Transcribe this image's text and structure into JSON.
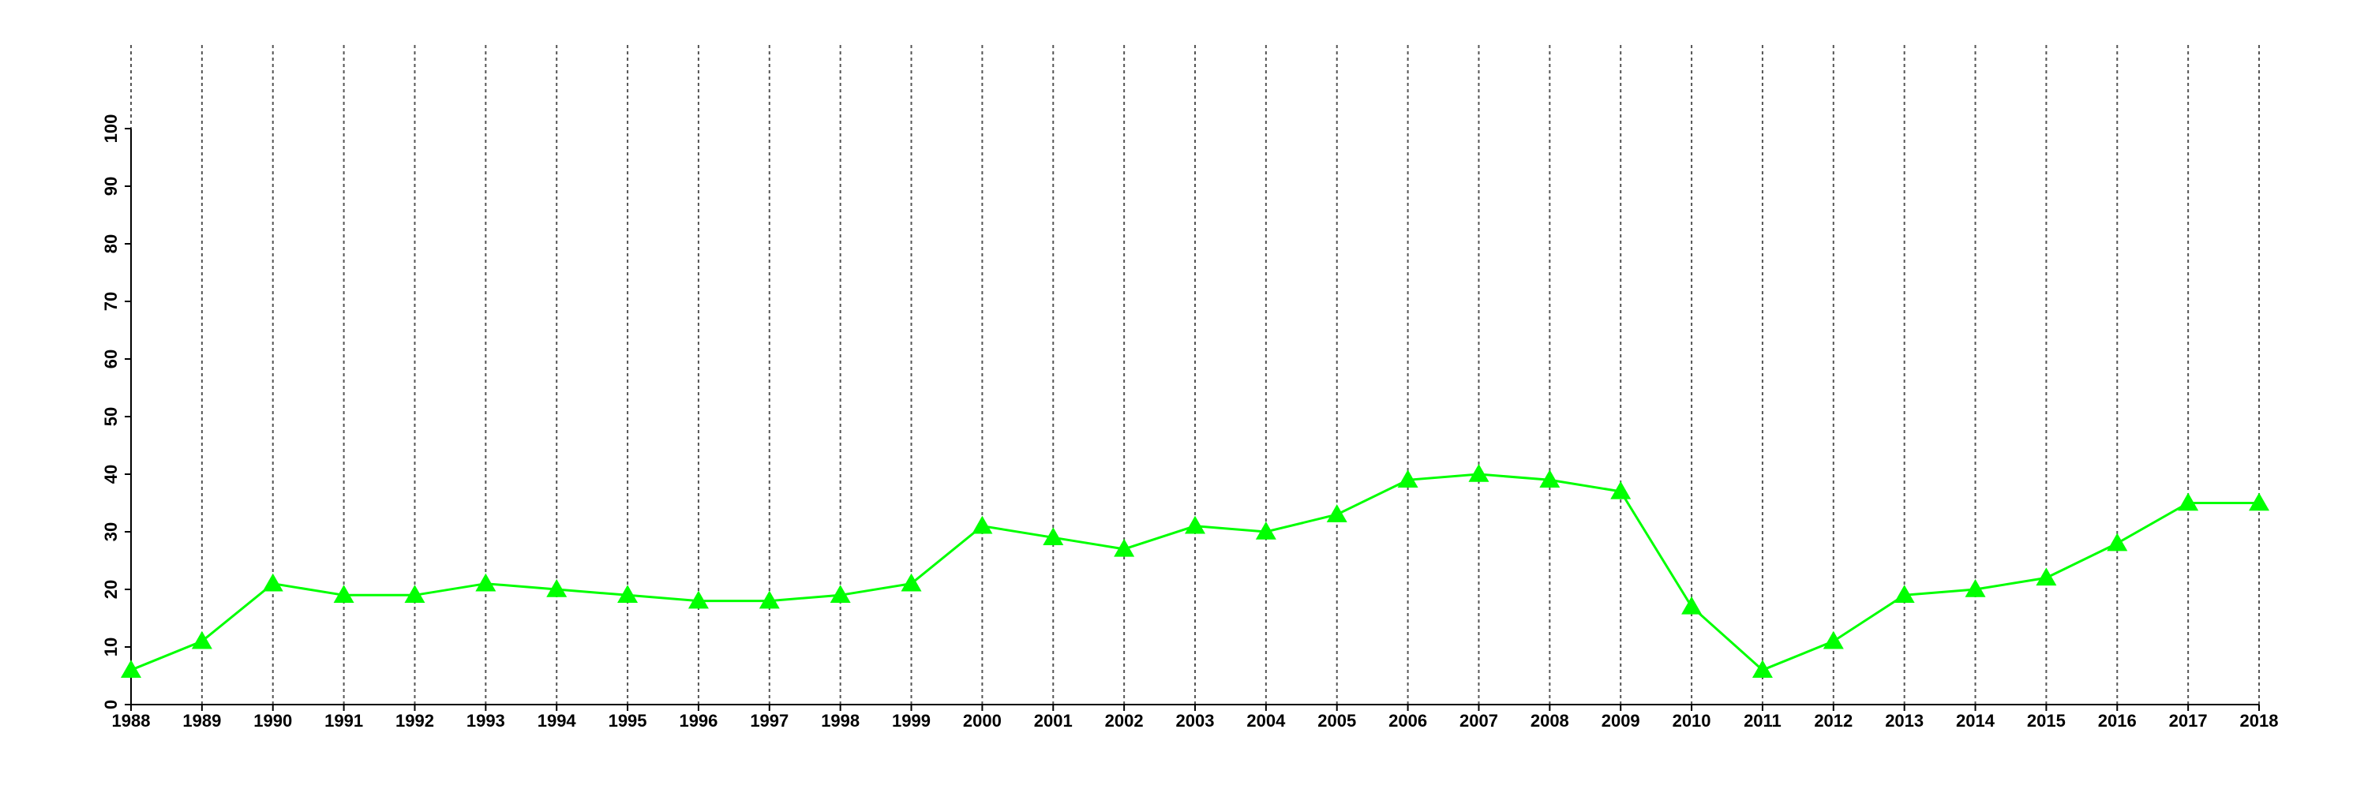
{
  "chart_data": {
    "type": "line",
    "x": [
      1988,
      1989,
      1990,
      1991,
      1992,
      1993,
      1994,
      1995,
      1996,
      1997,
      1998,
      1999,
      2000,
      2001,
      2002,
      2003,
      2004,
      2005,
      2006,
      2007,
      2008,
      2009,
      2010,
      2011,
      2012,
      2013,
      2014,
      2015,
      2016,
      2017,
      2018
    ],
    "values": [
      6,
      11,
      21,
      19,
      19,
      21,
      20,
      19,
      18,
      18,
      19,
      21,
      31,
      29,
      27,
      31,
      30,
      33,
      39,
      40,
      39,
      37,
      17,
      6,
      11,
      19,
      20,
      22,
      28,
      35,
      35
    ],
    "color": "#00ff00",
    "marker": "triangle",
    "xlim": [
      1988,
      2018
    ],
    "xticks": [
      1988,
      1989,
      1990,
      1991,
      1992,
      1993,
      1994,
      1995,
      1996,
      1997,
      1998,
      1999,
      2000,
      2001,
      2002,
      2003,
      2004,
      2005,
      2006,
      2007,
      2008,
      2009,
      2010,
      2011,
      2012,
      2013,
      2014,
      2015,
      2016,
      2017,
      2018
    ],
    "ylim": [
      0,
      100
    ],
    "yticks": [
      0,
      10,
      20,
      30,
      40,
      50,
      60,
      70,
      80,
      90,
      100
    ],
    "grid_x": true
  }
}
